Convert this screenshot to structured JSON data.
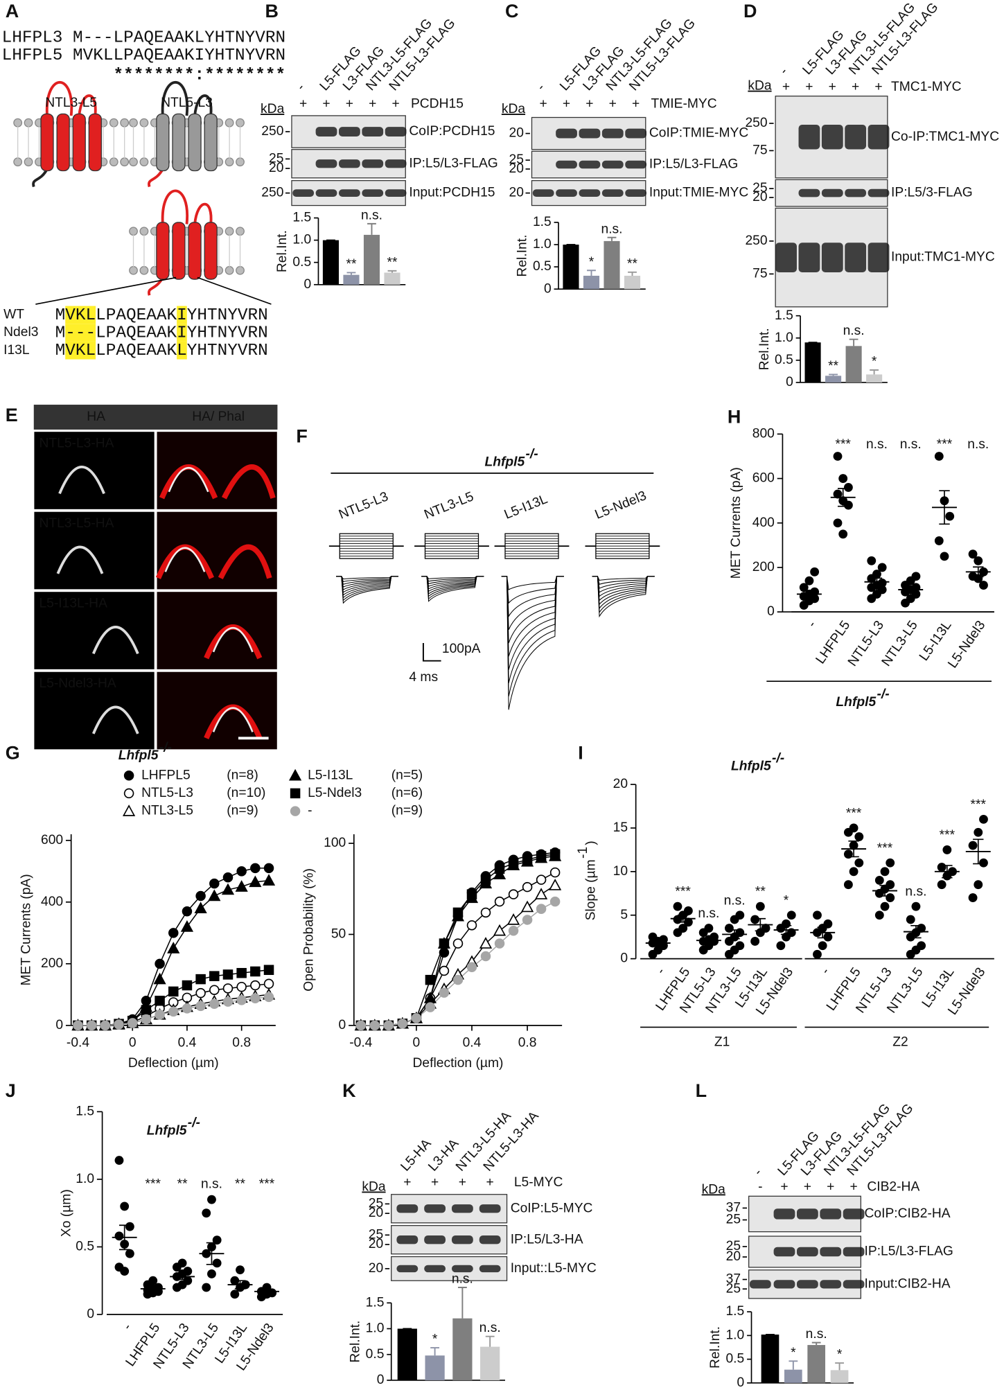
{
  "A": {
    "letter": "A",
    "alignment": [
      {
        "name": "LHFPL3",
        "seq": "M---LPAQEAAKLYHTNYVRN"
      },
      {
        "name": "LHFPL5",
        "seq": "MVKLLPAQEAAKIYHTNYVRN"
      }
    ],
    "conservation": "********:********",
    "constructs": [
      "NTL3-L5",
      "NTL5-L3"
    ],
    "variants": [
      {
        "name": "WT",
        "seq": "MVKLLPAQEAAKIYHTNYVRN"
      },
      {
        "name": "Ndel3",
        "seq": "M---LPAQEAAKIYHTNYVRN"
      },
      {
        "name": "I13L",
        "seq": "MVKLLPAQEAAKLYHTNYVRN"
      }
    ]
  },
  "B": {
    "letter": "B",
    "kda": "kDa",
    "lanes": [
      "-",
      "L5-FLAG",
      "L3-FLAG",
      "NTL3-L5-FLAG",
      "NTL5-L3-FLAG"
    ],
    "treatment": [
      "+",
      "+",
      "+",
      "+",
      "+"
    ],
    "treatment_label": "PCDH15",
    "blots": [
      {
        "markers": [
          "250"
        ],
        "label": "CoIP:PCDH15"
      },
      {
        "markers": [
          "25",
          "20"
        ],
        "label": "IP:L5/L3-FLAG"
      },
      {
        "markers": [
          "250"
        ],
        "label": "Input:PCDH15"
      }
    ],
    "chart": {
      "type": "bar",
      "ylabel": "Rel.Int.",
      "values": [
        1.0,
        0.22,
        1.12,
        0.27
      ],
      "errors": [
        0,
        0.05,
        0.25,
        0.04
      ],
      "annotations": [
        null,
        "**",
        "n.s.",
        "**"
      ],
      "colors": [
        "#000000",
        "#8d93a8",
        "#7f7f7f",
        "#cccccc"
      ],
      "ylim": [
        0,
        1.5
      ],
      "yticks": [
        0,
        0.5,
        {
          "value": 1,
          "label": "1.0"
        },
        1.5
      ]
    }
  },
  "C": {
    "letter": "C",
    "kda": "kDa",
    "lanes": [
      "-",
      "L5-FLAG",
      "L3-FLAG",
      "NTL3-L5-FLAG",
      "NTL5-L3-FLAG"
    ],
    "treatment": [
      "+",
      "+",
      "+",
      "+",
      "+"
    ],
    "treatment_label": "TMIE-MYC",
    "blots": [
      {
        "markers": [
          "20"
        ],
        "label": "CoIP:TMIE-MYC"
      },
      {
        "markers": [
          "25",
          "20"
        ],
        "label": "IP:L5/L3-FLAG"
      },
      {
        "markers": [
          "20"
        ],
        "label": "Input:TMIE-MYC"
      }
    ],
    "chart": {
      "type": "bar",
      "ylabel": "Rel.Int.",
      "values": [
        1.0,
        0.3,
        1.08,
        0.3
      ],
      "errors": [
        0,
        0.12,
        0.08,
        0.08
      ],
      "annotations": [
        null,
        "*",
        "n.s.",
        "**"
      ],
      "colors": [
        "#000000",
        "#8d93a8",
        "#7f7f7f",
        "#cccccc"
      ],
      "ylim": [
        0,
        1.5
      ],
      "yticks": [
        0,
        0.5,
        {
          "value": 1,
          "label": "1.0"
        },
        1.5
      ]
    }
  },
  "D": {
    "letter": "D",
    "kda": "kDa",
    "lanes": [
      "-",
      "L5-FLAG",
      "L3-FLAG",
      "NTL3-L5-FLAG",
      "NTL5-L3-FLAG"
    ],
    "treatment": [
      "+",
      "+",
      "+",
      "+",
      "+"
    ],
    "treatment_label": "TMC1-MYC",
    "blots": [
      {
        "markers": [
          "250",
          "75"
        ],
        "label": "Co-IP:TMC1-MYC"
      },
      {
        "markers": [
          "25",
          "20"
        ],
        "label": "IP:L5/3-FLAG"
      },
      {
        "markers": [
          "250",
          "75"
        ],
        "label": "Input:TMC1-MYC"
      }
    ],
    "chart": {
      "type": "bar",
      "ylabel": "Rel.Int.",
      "values": [
        0.9,
        0.15,
        0.82,
        0.18
      ],
      "errors": [
        0,
        0.03,
        0.15,
        0.1
      ],
      "annotations": [
        null,
        "**",
        "n.s.",
        "*"
      ],
      "colors": [
        "#000000",
        "#8d93a8",
        "#7f7f7f",
        "#cccccc"
      ],
      "ylim": [
        0,
        1.5
      ],
      "yticks": [
        0,
        0.5,
        {
          "value": 1,
          "label": "1.0"
        },
        1.5
      ]
    }
  },
  "E": {
    "letter": "E",
    "headers": [
      "HA",
      "HA/",
      "Phal"
    ],
    "rows": [
      "NTL5-L3-HA",
      "NTL3-L5-HA",
      "L5-I13L-HA",
      "L5-Ndel3-HA"
    ]
  },
  "F": {
    "letter": "F",
    "genotype": "Lhfpl5",
    "genotype_sup": "-/-",
    "conditions": [
      "NTL5-L3",
      "NTL3-L5",
      "L5-I13L",
      "L5-Ndel3"
    ],
    "scale_current": "100pA",
    "scale_time": "4 ms"
  },
  "G": {
    "letter": "G",
    "title": "Lhfpl5",
    "title_sup": "-/-",
    "x": [
      -0.4,
      -0.3,
      -0.2,
      -0.1,
      0,
      0.1,
      0.2,
      0.3,
      0.4,
      0.5,
      0.6,
      0.7,
      0.8,
      0.9,
      1.0
    ],
    "xlim": [
      -0.45,
      1.05
    ],
    "xticks": [
      -0.4,
      0,
      0.4,
      0.8
    ],
    "series": [
      {
        "name": "LHFPL5",
        "n": "(n=8)",
        "marker": "circle",
        "filled": true,
        "color": "#000000"
      },
      {
        "name": "NTL5-L3",
        "n": "(n=10)",
        "marker": "circle",
        "filled": false,
        "color": "#000000"
      },
      {
        "name": "NTL3-L5",
        "n": "(n=9)",
        "marker": "triangle",
        "filled": false,
        "color": "#000000"
      },
      {
        "name": "L5-I13L",
        "n": "(n=5)",
        "marker": "triangle",
        "filled": true,
        "color": "#000000"
      },
      {
        "name": "L5-Ndel3",
        "n": "(n=6)",
        "marker": "square",
        "filled": true,
        "color": "#000000"
      },
      {
        "name": "-",
        "n": "(n=9)",
        "marker": "circle",
        "filled": true,
        "color": "#a6a6a6"
      }
    ],
    "charts": [
      {
        "type": "line",
        "ylabel": "MET Currents (pA)",
        "xlabel": "Deflection (µm)",
        "ylim": [
          0,
          620
        ],
        "yticks": [
          0,
          200,
          400,
          600
        ],
        "values": [
          [
            0,
            0,
            0,
            5,
            20,
            80,
            200,
            300,
            370,
            420,
            460,
            480,
            500,
            510,
            510
          ],
          [
            0,
            0,
            0,
            5,
            10,
            30,
            55,
            75,
            90,
            105,
            115,
            120,
            125,
            130,
            135
          ],
          [
            0,
            0,
            0,
            3,
            8,
            20,
            35,
            50,
            60,
            70,
            78,
            85,
            90,
            95,
            100
          ],
          [
            0,
            0,
            0,
            5,
            15,
            60,
            150,
            250,
            320,
            380,
            420,
            440,
            450,
            465,
            470
          ],
          [
            0,
            0,
            0,
            5,
            15,
            50,
            80,
            110,
            130,
            150,
            160,
            165,
            170,
            175,
            180
          ],
          [
            0,
            0,
            0,
            3,
            8,
            20,
            35,
            45,
            55,
            63,
            70,
            77,
            82,
            88,
            92
          ]
        ]
      },
      {
        "type": "line",
        "ylabel": "Open Probability (%)",
        "xlabel": "Deflection (µm)",
        "ylim": [
          0,
          105
        ],
        "yticks": [
          0,
          50,
          100
        ],
        "values": [
          [
            0,
            0,
            0,
            1,
            4,
            15,
            40,
            60,
            73,
            82,
            88,
            91,
            93,
            94,
            95
          ],
          [
            0,
            0,
            0,
            1,
            4,
            15,
            30,
            45,
            55,
            62,
            68,
            72,
            76,
            80,
            84
          ],
          [
            0,
            0,
            0,
            1,
            4,
            12,
            20,
            28,
            35,
            45,
            52,
            58,
            65,
            72,
            77
          ],
          [
            0,
            0,
            0,
            1,
            4,
            15,
            45,
            60,
            70,
            78,
            83,
            88,
            90,
            92,
            93
          ],
          [
            0,
            0,
            0,
            1,
            4,
            25,
            45,
            62,
            72,
            80,
            86,
            89,
            91,
            93,
            94
          ],
          [
            0,
            0,
            0,
            1,
            4,
            10,
            18,
            25,
            32,
            38,
            45,
            52,
            58,
            64,
            68
          ]
        ]
      }
    ]
  },
  "H": {
    "letter": "H",
    "type": "scatter",
    "ylabel": "MET Currents (pA)",
    "ylim": [
      0,
      800
    ],
    "yticks": [
      0,
      200,
      400,
      600,
      800
    ],
    "categories": [
      "-",
      "LHFPL5",
      "NTL5-L3",
      "NTL3-L5",
      "L5-I13L",
      "L5-Ndel3"
    ],
    "points": [
      [
        30,
        50,
        60,
        70,
        80,
        90,
        110,
        140,
        180
      ],
      [
        700,
        600,
        560,
        530,
        500,
        480,
        400,
        350
      ],
      [
        60,
        80,
        100,
        110,
        120,
        130,
        150,
        170,
        200,
        230
      ],
      [
        40,
        60,
        80,
        90,
        100,
        110,
        120,
        140,
        160
      ],
      [
        700,
        500,
        430,
        320,
        250
      ],
      [
        260,
        230,
        180,
        160,
        150,
        120
      ]
    ],
    "means": [
      80,
      515,
      135,
      100,
      470,
      180
    ],
    "sems": [
      17,
      40,
      17,
      13,
      75,
      22
    ],
    "annotations": [
      null,
      "***",
      "n.s.",
      "n.s.",
      "***",
      "n.s."
    ],
    "genotype": "Lhfpl5",
    "genotype_sup": "-/-"
  },
  "I": {
    "letter": "I",
    "type": "scatter",
    "title": "Lhfpl5",
    "title_sup": "-/-",
    "ylabel": [
      "Slope (µm",
      "-1",
      ")"
    ],
    "ylim": [
      0,
      20
    ],
    "yticks": [
      0,
      5,
      10,
      15,
      20
    ],
    "categories": [
      "-",
      "LHFPL5",
      "NTL5-L3",
      "NTL3-L5",
      "L5-I13L",
      "L5-Ndel3"
    ],
    "groups": [
      {
        "name": "Z1",
        "points": [
          [
            0.5,
            1,
            1.5,
            1.8,
            2,
            2.2,
            2.5
          ],
          [
            3,
            3.5,
            4.2,
            4.5,
            5,
            5.5,
            6
          ],
          [
            1,
            1.5,
            2,
            2,
            2.2,
            2.5,
            3,
            3.5
          ],
          [
            0.5,
            1,
            1.5,
            2,
            2.5,
            3,
            3.5,
            4.5,
            5
          ],
          [
            2,
            3,
            3.5,
            4.5,
            6
          ],
          [
            1.5,
            2.5,
            3,
            3.5,
            4,
            5
          ]
        ],
        "means": [
          1.8,
          4.6,
          2.1,
          2.8,
          3.9,
          3.3
        ],
        "sems": [
          0.3,
          0.4,
          0.3,
          0.5,
          0.7,
          0.5
        ],
        "annotations": [
          null,
          "***",
          "n.s.",
          "n.s.",
          "**",
          "*"
        ]
      },
      {
        "name": "Z2",
        "points": [
          [
            0.5,
            1.5,
            2.5,
            3,
            3.5,
            4,
            5
          ],
          [
            8.5,
            10,
            11,
            12,
            13,
            14,
            14.5,
            15
          ],
          [
            5,
            6,
            7,
            7.5,
            8,
            8.5,
            9,
            10,
            11
          ],
          [
            0.5,
            1,
            1.5,
            2.5,
            3,
            3.5,
            4.5,
            6
          ],
          [
            8.5,
            9.5,
            10,
            10.5,
            12.5
          ],
          [
            7,
            8.5,
            11,
            13,
            14.5,
            16
          ]
        ],
        "means": [
          3,
          12.6,
          7.8,
          3.1,
          10,
          12.3
        ],
        "sems": [
          0.6,
          0.9,
          0.6,
          0.7,
          0.7,
          1.4
        ],
        "annotations": [
          null,
          "***",
          "***",
          "n.s.",
          "***",
          "***"
        ]
      }
    ]
  },
  "J": {
    "letter": "J",
    "type": "scatter",
    "title": "Lhfpl5",
    "title_sup": "-/-",
    "ylabel": "Xo (µm)",
    "ylim": [
      0,
      1.5
    ],
    "yticks": [
      0,
      0.5,
      {
        "value": 1,
        "label": "1.0"
      },
      1.5
    ],
    "categories": [
      "-",
      "LHFPL5",
      "NTL5-L3",
      "NTL3-L5",
      "L5-I13L",
      "L5-Ndel3"
    ],
    "points": [
      [
        1.14,
        0.8,
        0.65,
        0.58,
        0.52,
        0.45,
        0.35,
        0.32
      ],
      [
        0.15,
        0.16,
        0.17,
        0.18,
        0.19,
        0.2,
        0.22,
        0.25
      ],
      [
        0.2,
        0.22,
        0.25,
        0.28,
        0.3,
        0.32,
        0.35,
        0.38
      ],
      [
        0.2,
        0.3,
        0.38,
        0.45,
        0.5,
        0.55,
        0.75,
        0.85
      ],
      [
        0.15,
        0.2,
        0.22,
        0.25,
        0.33
      ],
      [
        0.13,
        0.15,
        0.16,
        0.17,
        0.2
      ]
    ],
    "means": [
      0.57,
      0.19,
      0.28,
      0.45,
      0.22,
      0.17
    ],
    "sems": [
      0.09,
      0.01,
      0.02,
      0.08,
      0.03,
      0.01
    ],
    "annotations": [
      null,
      "***",
      "**",
      "n.s.",
      "**",
      "***"
    ]
  },
  "K": {
    "letter": "K",
    "kda": "kDa",
    "lanes": [
      "L5-HA",
      "L3-HA",
      "NTL3-L5-HA",
      "NTL5-L3-HA"
    ],
    "treatment": [
      "+",
      "+",
      "+",
      "+"
    ],
    "treatment_label": "L5-MYC",
    "blots": [
      {
        "markers": [
          "25",
          "20"
        ],
        "label": "CoIP:L5-MYC"
      },
      {
        "markers": [
          "25",
          "20"
        ],
        "label": "IP:L5/L3-HA"
      },
      {
        "markers": [
          "20"
        ],
        "label": "Input::L5-MYC"
      }
    ],
    "chart": {
      "type": "bar",
      "ylabel": "Rel.Int.",
      "values": [
        1.0,
        0.48,
        1.2,
        0.65
      ],
      "errors": [
        0,
        0.15,
        0.6,
        0.2
      ],
      "annotations": [
        null,
        "*",
        "n.s.",
        "n.s."
      ],
      "colors": [
        "#000000",
        "#8d93a8",
        "#7f7f7f",
        "#cccccc"
      ],
      "ylim": [
        0,
        1.5
      ],
      "yticks": [
        0,
        0.5,
        {
          "value": 1,
          "label": "1.0"
        },
        1.5
      ]
    }
  },
  "L": {
    "letter": "L",
    "kda": "kDa",
    "lanes": [
      "-",
      "L5-FLAG",
      "L3-FLAG",
      "NTL3-L5-FLAG",
      "NTL5-L3-FLAG"
    ],
    "treatment": [
      "-",
      "+",
      "+",
      "+",
      "+"
    ],
    "treatment_label": "CIB2-HA",
    "blots": [
      {
        "markers": [
          "37",
          "25"
        ],
        "label": "CoIP:CIB2-HA"
      },
      {
        "markers": [
          "25",
          "20"
        ],
        "label": "IP:L5/L3-FLAG"
      },
      {
        "markers": [
          "37",
          "25"
        ],
        "label": "Input:CIB2-HA"
      }
    ],
    "chart": {
      "type": "bar",
      "ylabel": "Rel.Int.",
      "values": [
        1.02,
        0.28,
        0.8,
        0.27
      ],
      "errors": [
        0,
        0.18,
        0.05,
        0.15
      ],
      "annotations": [
        null,
        "*",
        "n.s.",
        "*"
      ],
      "colors": [
        "#000000",
        "#8d93a8",
        "#7f7f7f",
        "#cccccc"
      ],
      "ylim": [
        0,
        1.5
      ],
      "yticks": [
        0,
        0.5,
        {
          "value": 1,
          "label": "1.0"
        },
        1.5
      ]
    }
  }
}
